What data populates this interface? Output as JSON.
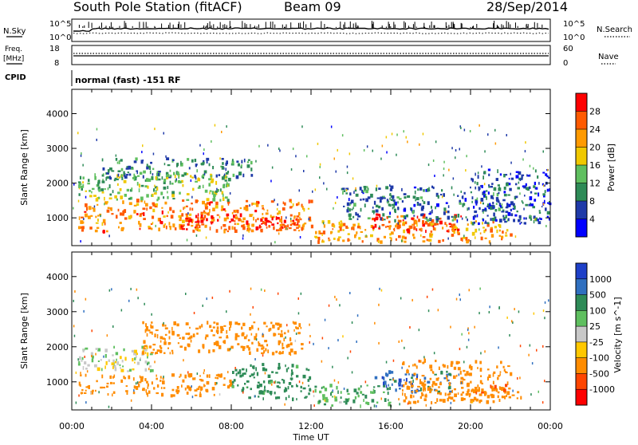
{
  "header": {
    "title": "South Pole Station (fitACF)",
    "beam": "Beam 09",
    "date": "28/Sep/2014"
  },
  "top_panels": {
    "nsky_label": "N.Sky",
    "nsearch_label": "N.Search",
    "freq_label_1": "Freq.",
    "freq_label_2": "[MHz]",
    "nave_label": "Nave",
    "cpid_label": "CPID",
    "cpid_value": "normal (fast) -151 RF",
    "noise_ticks": [
      "10^5",
      "10^0"
    ],
    "freq_ticks": [
      "18",
      "8"
    ],
    "nave_ticks": [
      "60",
      "0"
    ]
  },
  "colors": {
    "power_scale": [
      "#0000ff",
      "#1f3aa8",
      "#2e8b57",
      "#5fbf5f",
      "#f0c800",
      "#ff9a00",
      "#ff5a00",
      "#ff0000"
    ],
    "velocity_scale": [
      "#1e40c8",
      "#3070c0",
      "#2e8b57",
      "#5fbf5f",
      "#c8c8c8",
      "#ffc800",
      "#ff8c00",
      "#ff4500",
      "#ff0000"
    ]
  },
  "chart_data": [
    {
      "type": "heatmap",
      "name": "power",
      "xlabel": "",
      "ylabel": "Slant Range [km]",
      "x_ticks": [
        "00:00",
        "04:00",
        "08:00",
        "12:00",
        "16:00",
        "20:00",
        "00:00"
      ],
      "y_ticks": [
        1000,
        2000,
        3000,
        4000
      ],
      "ylim": [
        200,
        4700
      ],
      "colorbar": {
        "label": "Power [dB]",
        "ticks": [
          4,
          8,
          12,
          16,
          20,
          24,
          28
        ],
        "range": [
          0,
          32
        ]
      },
      "regions": [
        {
          "t0": 0.3,
          "t1": 12.0,
          "r0": 600,
          "r1": 1500,
          "power": 24
        },
        {
          "t0": 5.5,
          "t1": 11.5,
          "r0": 650,
          "r1": 1100,
          "power": 28
        },
        {
          "t0": 0.3,
          "t1": 8.0,
          "r0": 1500,
          "r1": 2300,
          "power": 14
        },
        {
          "t0": 1.5,
          "t1": 9.0,
          "r0": 2100,
          "r1": 2700,
          "power": 10
        },
        {
          "t0": 12.1,
          "t1": 22.0,
          "r0": 300,
          "r1": 900,
          "power": 22
        },
        {
          "t0": 15.0,
          "t1": 19.5,
          "r0": 600,
          "r1": 1100,
          "power": 28
        },
        {
          "t0": 13.5,
          "t1": 21.5,
          "r0": 900,
          "r1": 1900,
          "power": 8
        },
        {
          "t0": 20.0,
          "t1": 24.0,
          "r0": 800,
          "r1": 2400,
          "power": 6
        }
      ]
    },
    {
      "type": "heatmap",
      "name": "velocity",
      "xlabel": "Time UT",
      "ylabel": "Slant Range [km]",
      "x_ticks": [
        "00:00",
        "04:00",
        "08:00",
        "12:00",
        "16:00",
        "20:00",
        "00:00"
      ],
      "y_ticks": [
        1000,
        2000,
        3000,
        4000
      ],
      "ylim": [
        200,
        4700
      ],
      "colorbar": {
        "label": "Velocity [m s^-1]",
        "ticks": [
          1000,
          500,
          100,
          25,
          -25,
          -100,
          -500,
          -1000
        ]
      },
      "regions": [
        {
          "t0": 0.3,
          "t1": 4.0,
          "r0": 1300,
          "r1": 2000,
          "velocity": 0
        },
        {
          "t0": 0.3,
          "t1": 8.0,
          "r0": 600,
          "r1": 1200,
          "velocity": -300
        },
        {
          "t0": 3.5,
          "t1": 11.5,
          "r0": 1800,
          "r1": 2700,
          "velocity": -300
        },
        {
          "t0": 8.0,
          "t1": 12.0,
          "r0": 500,
          "r1": 1500,
          "velocity": 200
        },
        {
          "t0": 12.1,
          "t1": 16.0,
          "r0": 300,
          "r1": 900,
          "velocity": 80
        },
        {
          "t0": 15.0,
          "t1": 19.0,
          "r0": 700,
          "r1": 1300,
          "velocity": 700
        },
        {
          "t0": 16.5,
          "t1": 22.0,
          "r0": 400,
          "r1": 1600,
          "velocity": -300
        },
        {
          "t0": 19.5,
          "t1": 22.5,
          "r0": 500,
          "r1": 900,
          "velocity": -400
        }
      ]
    }
  ]
}
